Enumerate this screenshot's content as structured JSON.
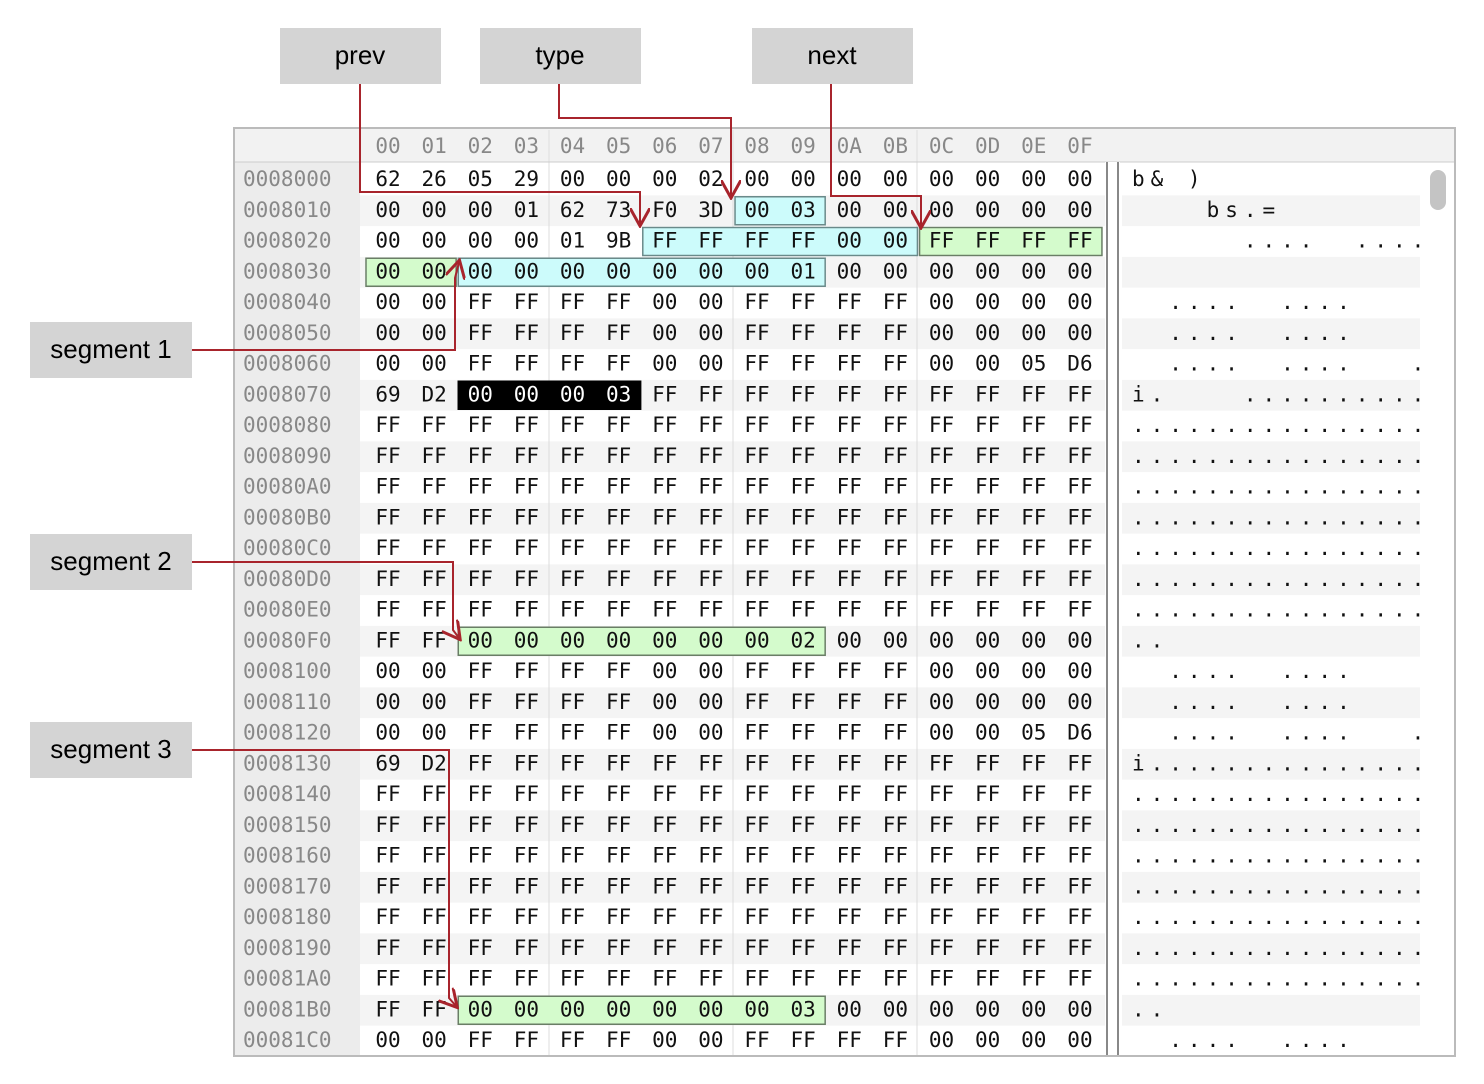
{
  "annotations": {
    "prev": "prev",
    "type": "type",
    "next": "next",
    "segment_1": "segment 1",
    "segment_2": "segment 2",
    "segment_3": "segment 3"
  },
  "columns": [
    "00",
    "01",
    "02",
    "03",
    "04",
    "05",
    "06",
    "07",
    "08",
    "09",
    "0A",
    "0B",
    "0C",
    "0D",
    "0E",
    "0F"
  ],
  "rows": [
    {
      "address": "0008000",
      "bytes": [
        "62",
        "26",
        "05",
        "29",
        "00",
        "00",
        "00",
        "02",
        "00",
        "00",
        "00",
        "00",
        "00",
        "00",
        "00",
        "00"
      ],
      "ascii": "b& )"
    },
    {
      "address": "0008010",
      "bytes": [
        "00",
        "00",
        "00",
        "01",
        "62",
        "73",
        "F0",
        "3D",
        "00",
        "03",
        "00",
        "00",
        "00",
        "00",
        "00",
        "00"
      ],
      "ascii": "    bs.="
    },
    {
      "address": "0008020",
      "bytes": [
        "00",
        "00",
        "00",
        "00",
        "01",
        "9B",
        "FF",
        "FF",
        "FF",
        "FF",
        "00",
        "00",
        "FF",
        "FF",
        "FF",
        "FF"
      ],
      "ascii": "      ....  ...."
    },
    {
      "address": "0008030",
      "bytes": [
        "00",
        "00",
        "00",
        "00",
        "00",
        "00",
        "00",
        "00",
        "00",
        "01",
        "00",
        "00",
        "00",
        "00",
        "00",
        "00"
      ]
    },
    {
      "address": "0008040",
      "bytes": [
        "00",
        "00",
        "FF",
        "FF",
        "FF",
        "FF",
        "00",
        "00",
        "FF",
        "FF",
        "FF",
        "FF",
        "00",
        "00",
        "00",
        "00"
      ],
      "ascii": "  ....  ...."
    },
    {
      "address": "0008050",
      "bytes": [
        "00",
        "00",
        "FF",
        "FF",
        "FF",
        "FF",
        "00",
        "00",
        "FF",
        "FF",
        "FF",
        "FF",
        "00",
        "00",
        "00",
        "00"
      ],
      "ascii": "  ....  ...."
    },
    {
      "address": "0008060",
      "bytes": [
        "00",
        "00",
        "FF",
        "FF",
        "FF",
        "FF",
        "00",
        "00",
        "FF",
        "FF",
        "FF",
        "FF",
        "00",
        "00",
        "05",
        "D6"
      ],
      "ascii": "  ....  ....   ."
    },
    {
      "address": "0008070",
      "bytes": [
        "69",
        "D2",
        "00",
        "00",
        "00",
        "03",
        "FF",
        "FF",
        "FF",
        "FF",
        "FF",
        "FF",
        "FF",
        "FF",
        "FF",
        "FF"
      ],
      "ascii": "i.    .........."
    },
    {
      "address": "0008080",
      "bytes": [
        "FF",
        "FF",
        "FF",
        "FF",
        "FF",
        "FF",
        "FF",
        "FF",
        "FF",
        "FF",
        "FF",
        "FF",
        "FF",
        "FF",
        "FF",
        "FF"
      ],
      "ascii": "................"
    },
    {
      "address": "0008090",
      "bytes": [
        "FF",
        "FF",
        "FF",
        "FF",
        "FF",
        "FF",
        "FF",
        "FF",
        "FF",
        "FF",
        "FF",
        "FF",
        "FF",
        "FF",
        "FF",
        "FF"
      ],
      "ascii": "................"
    },
    {
      "address": "00080A0",
      "bytes": [
        "FF",
        "FF",
        "FF",
        "FF",
        "FF",
        "FF",
        "FF",
        "FF",
        "FF",
        "FF",
        "FF",
        "FF",
        "FF",
        "FF",
        "FF",
        "FF"
      ],
      "ascii": "................"
    },
    {
      "address": "00080B0",
      "bytes": [
        "FF",
        "FF",
        "FF",
        "FF",
        "FF",
        "FF",
        "FF",
        "FF",
        "FF",
        "FF",
        "FF",
        "FF",
        "FF",
        "FF",
        "FF",
        "FF"
      ],
      "ascii": "................"
    },
    {
      "address": "00080C0",
      "bytes": [
        "FF",
        "FF",
        "FF",
        "FF",
        "FF",
        "FF",
        "FF",
        "FF",
        "FF",
        "FF",
        "FF",
        "FF",
        "FF",
        "FF",
        "FF",
        "FF"
      ],
      "ascii": "................"
    },
    {
      "address": "00080D0",
      "bytes": [
        "FF",
        "FF",
        "FF",
        "FF",
        "FF",
        "FF",
        "FF",
        "FF",
        "FF",
        "FF",
        "FF",
        "FF",
        "FF",
        "FF",
        "FF",
        "FF"
      ],
      "ascii": "................"
    },
    {
      "address": "00080E0",
      "bytes": [
        "FF",
        "FF",
        "FF",
        "FF",
        "FF",
        "FF",
        "FF",
        "FF",
        "FF",
        "FF",
        "FF",
        "FF",
        "FF",
        "FF",
        "FF",
        "FF"
      ],
      "ascii": "................"
    },
    {
      "address": "00080F0",
      "bytes": [
        "FF",
        "FF",
        "00",
        "00",
        "00",
        "00",
        "00",
        "00",
        "00",
        "02",
        "00",
        "00",
        "00",
        "00",
        "00",
        "00"
      ],
      "ascii": ".."
    },
    {
      "address": "0008100",
      "bytes": [
        "00",
        "00",
        "FF",
        "FF",
        "FF",
        "FF",
        "00",
        "00",
        "FF",
        "FF",
        "FF",
        "FF",
        "00",
        "00",
        "00",
        "00"
      ],
      "ascii": "  ....  ...."
    },
    {
      "address": "0008110",
      "bytes": [
        "00",
        "00",
        "FF",
        "FF",
        "FF",
        "FF",
        "00",
        "00",
        "FF",
        "FF",
        "FF",
        "FF",
        "00",
        "00",
        "00",
        "00"
      ],
      "ascii": "  ....  ...."
    },
    {
      "address": "0008120",
      "bytes": [
        "00",
        "00",
        "FF",
        "FF",
        "FF",
        "FF",
        "00",
        "00",
        "FF",
        "FF",
        "FF",
        "FF",
        "00",
        "00",
        "05",
        "D6"
      ],
      "ascii": "  ....  ....   ."
    },
    {
      "address": "0008130",
      "bytes": [
        "69",
        "D2",
        "FF",
        "FF",
        "FF",
        "FF",
        "FF",
        "FF",
        "FF",
        "FF",
        "FF",
        "FF",
        "FF",
        "FF",
        "FF",
        "FF"
      ],
      "ascii": "i..............."
    },
    {
      "address": "0008140",
      "bytes": [
        "FF",
        "FF",
        "FF",
        "FF",
        "FF",
        "FF",
        "FF",
        "FF",
        "FF",
        "FF",
        "FF",
        "FF",
        "FF",
        "FF",
        "FF",
        "FF"
      ],
      "ascii": "................"
    },
    {
      "address": "0008150",
      "bytes": [
        "FF",
        "FF",
        "FF",
        "FF",
        "FF",
        "FF",
        "FF",
        "FF",
        "FF",
        "FF",
        "FF",
        "FF",
        "FF",
        "FF",
        "FF",
        "FF"
      ],
      "ascii": "................"
    },
    {
      "address": "0008160",
      "bytes": [
        "FF",
        "FF",
        "FF",
        "FF",
        "FF",
        "FF",
        "FF",
        "FF",
        "FF",
        "FF",
        "FF",
        "FF",
        "FF",
        "FF",
        "FF",
        "FF"
      ],
      "ascii": "................"
    },
    {
      "address": "0008170",
      "bytes": [
        "FF",
        "FF",
        "FF",
        "FF",
        "FF",
        "FF",
        "FF",
        "FF",
        "FF",
        "FF",
        "FF",
        "FF",
        "FF",
        "FF",
        "FF",
        "FF"
      ],
      "ascii": "................"
    },
    {
      "address": "0008180",
      "bytes": [
        "FF",
        "FF",
        "FF",
        "FF",
        "FF",
        "FF",
        "FF",
        "FF",
        "FF",
        "FF",
        "FF",
        "FF",
        "FF",
        "FF",
        "FF",
        "FF"
      ],
      "ascii": "................"
    },
    {
      "address": "0008190",
      "bytes": [
        "FF",
        "FF",
        "FF",
        "FF",
        "FF",
        "FF",
        "FF",
        "FF",
        "FF",
        "FF",
        "FF",
        "FF",
        "FF",
        "FF",
        "FF",
        "FF"
      ],
      "ascii": "................"
    },
    {
      "address": "00081A0",
      "bytes": [
        "FF",
        "FF",
        "FF",
        "FF",
        "FF",
        "FF",
        "FF",
        "FF",
        "FF",
        "FF",
        "FF",
        "FF",
        "FF",
        "FF",
        "FF",
        "FF"
      ],
      "ascii": "................"
    },
    {
      "address": "00081B0",
      "bytes": [
        "FF",
        "FF",
        "00",
        "00",
        "00",
        "00",
        "00",
        "00",
        "00",
        "03",
        "00",
        "00",
        "00",
        "00",
        "00",
        "00"
      ],
      "ascii": ".."
    },
    {
      "address": "00081C0",
      "bytes": [
        "00",
        "00",
        "FF",
        "FF",
        "FF",
        "FF",
        "00",
        "00",
        "FF",
        "FF",
        "FF",
        "FF",
        "00",
        "00",
        "00",
        "00"
      ],
      "ascii": "  ....  ...."
    }
  ]
}
